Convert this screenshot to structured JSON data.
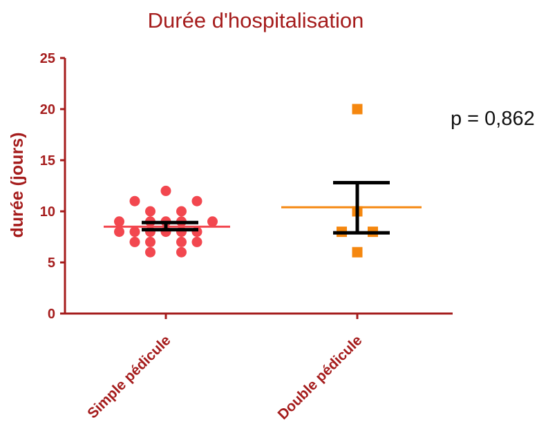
{
  "chart_data": {
    "type": "scatter",
    "title": "Durée d'hospitalisation",
    "ylabel": "durée (jours)",
    "xlabel": "",
    "ylim": [
      0,
      25
    ],
    "yticks": [
      "0",
      "5",
      "10",
      "15",
      "20",
      "25"
    ],
    "categories": [
      "Simple pédicule",
      "Double pédicule"
    ],
    "annotation": "p = 0,862",
    "series": [
      {
        "category": "Simple pédicule",
        "marker": "circle",
        "color": "#f2474f",
        "points": [
          {
            "x": 0,
            "y": 12
          },
          {
            "x": -0.3,
            "y": 11
          },
          {
            "x": 0.3,
            "y": 11
          },
          {
            "x": -0.15,
            "y": 10
          },
          {
            "x": 0.15,
            "y": 10
          },
          {
            "x": -0.45,
            "y": 9
          },
          {
            "x": -0.15,
            "y": 9
          },
          {
            "x": 0,
            "y": 9
          },
          {
            "x": 0.15,
            "y": 9
          },
          {
            "x": 0.45,
            "y": 9
          },
          {
            "x": -0.45,
            "y": 8
          },
          {
            "x": -0.3,
            "y": 8
          },
          {
            "x": -0.15,
            "y": 8
          },
          {
            "x": 0,
            "y": 8
          },
          {
            "x": 0.15,
            "y": 8
          },
          {
            "x": 0.3,
            "y": 8
          },
          {
            "x": -0.3,
            "y": 7
          },
          {
            "x": -0.15,
            "y": 7
          },
          {
            "x": 0.15,
            "y": 7
          },
          {
            "x": 0.3,
            "y": 7
          },
          {
            "x": -0.15,
            "y": 6
          },
          {
            "x": 0.15,
            "y": 6
          }
        ],
        "mean": 8.5,
        "mean_color": "#f2474f",
        "error_bar": {
          "lower": 8.2,
          "upper": 8.9
        },
        "error_color": "#000000"
      },
      {
        "category": "Double pédicule",
        "marker": "square",
        "color": "#f5870f",
        "points": [
          {
            "x": 0,
            "y": 20
          },
          {
            "x": 0,
            "y": 10
          },
          {
            "x": -0.15,
            "y": 8
          },
          {
            "x": 0.15,
            "y": 8
          },
          {
            "x": 0,
            "y": 6
          }
        ],
        "mean": 10.4,
        "mean_color": "#f5870f",
        "error_bar": {
          "lower": 7.9,
          "upper": 12.8
        },
        "error_color": "#000000"
      }
    ]
  }
}
